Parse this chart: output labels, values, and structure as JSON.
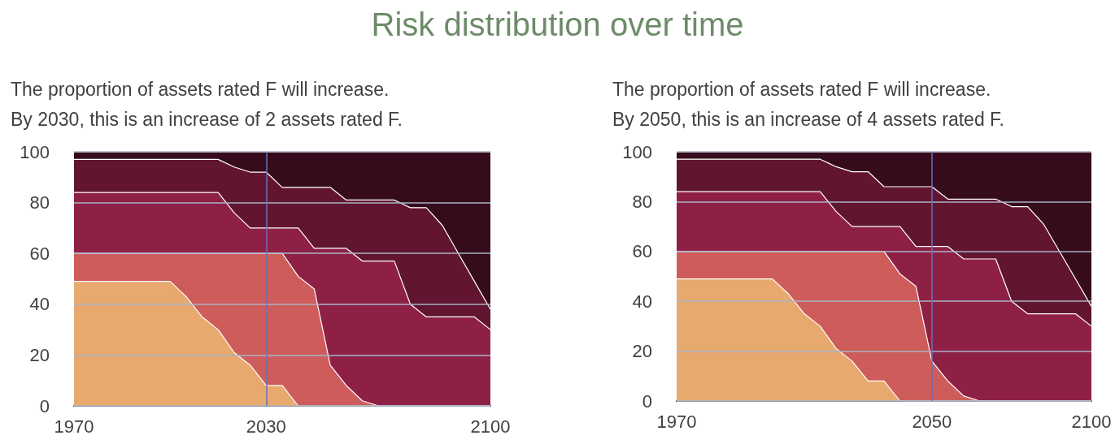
{
  "chart_data": [
    {
      "type": "area",
      "title": "Risk distribution over time",
      "subtitle": "The proportion of assets rated F will increase.\nBy 2030, this is an increase of 2 assets rated F.",
      "stacked": true,
      "grid": "y",
      "x": [
        1970,
        1975,
        1980,
        1985,
        1990,
        1995,
        2000,
        2005,
        2010,
        2015,
        2020,
        2025,
        2030,
        2035,
        2040,
        2045,
        2050,
        2055,
        2060,
        2065,
        2070,
        2075,
        2080,
        2085,
        2090,
        2095,
        2100
      ],
      "xlim": [
        1970,
        2100
      ],
      "xticks": [
        1970,
        2030,
        2100
      ],
      "ylim": [
        0,
        100
      ],
      "yticks": [
        0,
        20,
        40,
        60,
        80,
        100
      ],
      "series": [
        {
          "color": "#e8a96e",
          "values": [
            49,
            49,
            49,
            49,
            49,
            49,
            49,
            43,
            35,
            30,
            21,
            16,
            8,
            8,
            0,
            0,
            0,
            0,
            0,
            0,
            0,
            0,
            0,
            0,
            0,
            0,
            0
          ]
        },
        {
          "color": "#cd5c5a",
          "values": [
            11,
            11,
            11,
            11,
            11,
            11,
            11,
            17,
            25,
            30,
            39,
            44,
            52,
            52,
            51,
            46,
            16,
            8,
            2,
            0,
            0,
            0,
            0,
            0,
            0,
            0,
            0
          ]
        },
        {
          "color": "#8e2046",
          "values": [
            24,
            24,
            24,
            24,
            24,
            24,
            24,
            24,
            24,
            24,
            16,
            10,
            10,
            10,
            19,
            16,
            46,
            54,
            55,
            57,
            57,
            40,
            35,
            35,
            35,
            35,
            30
          ]
        },
        {
          "color": "#611530",
          "values": [
            13,
            13,
            13,
            13,
            13,
            13,
            13,
            13,
            13,
            13,
            18,
            22,
            22,
            16,
            16,
            24,
            24,
            19,
            24,
            24,
            24,
            38,
            43,
            36,
            25,
            14,
            8
          ]
        },
        {
          "color": "#360c1c",
          "values": [
            3,
            3,
            3,
            3,
            3,
            3,
            3,
            3,
            3,
            3,
            6,
            8,
            8,
            14,
            14,
            14,
            14,
            19,
            19,
            19,
            19,
            22,
            22,
            29,
            40,
            51,
            62
          ]
        }
      ],
      "ref_lines": [
        {
          "axis": "x",
          "value": 2030,
          "color": "#6a6fb8"
        }
      ]
    },
    {
      "type": "area",
      "subtitle": "The proportion of assets rated F will increase.\nBy 2050, this is an increase of 4 assets rated F.",
      "stacked": true,
      "grid": "y",
      "x": [
        1970,
        1975,
        1980,
        1985,
        1990,
        1995,
        2000,
        2005,
        2010,
        2015,
        2020,
        2025,
        2030,
        2035,
        2040,
        2045,
        2050,
        2055,
        2060,
        2065,
        2070,
        2075,
        2080,
        2085,
        2090,
        2095,
        2100
      ],
      "xlim": [
        1970,
        2100
      ],
      "xticks": [
        1970,
        2050,
        2100
      ],
      "ylim": [
        0,
        100
      ],
      "yticks": [
        0,
        20,
        40,
        60,
        80,
        100
      ],
      "series": [
        {
          "color": "#e8a96e",
          "values": [
            49,
            49,
            49,
            49,
            49,
            49,
            49,
            43,
            35,
            30,
            21,
            16,
            8,
            8,
            0,
            0,
            0,
            0,
            0,
            0,
            0,
            0,
            0,
            0,
            0,
            0,
            0
          ]
        },
        {
          "color": "#cd5c5a",
          "values": [
            11,
            11,
            11,
            11,
            11,
            11,
            11,
            17,
            25,
            30,
            39,
            44,
            52,
            52,
            51,
            46,
            16,
            8,
            2,
            0,
            0,
            0,
            0,
            0,
            0,
            0,
            0
          ]
        },
        {
          "color": "#8e2046",
          "values": [
            24,
            24,
            24,
            24,
            24,
            24,
            24,
            24,
            24,
            24,
            16,
            10,
            10,
            10,
            19,
            16,
            46,
            54,
            55,
            57,
            57,
            40,
            35,
            35,
            35,
            35,
            30
          ]
        },
        {
          "color": "#611530",
          "values": [
            13,
            13,
            13,
            13,
            13,
            13,
            13,
            13,
            13,
            13,
            18,
            22,
            22,
            16,
            16,
            24,
            24,
            19,
            24,
            24,
            24,
            38,
            43,
            36,
            25,
            14,
            8
          ]
        },
        {
          "color": "#360c1c",
          "values": [
            3,
            3,
            3,
            3,
            3,
            3,
            3,
            3,
            3,
            3,
            6,
            8,
            8,
            14,
            14,
            14,
            14,
            19,
            19,
            19,
            19,
            22,
            22,
            29,
            40,
            51,
            62
          ]
        }
      ],
      "ref_lines": [
        {
          "axis": "x",
          "value": 2050,
          "color": "#6a6fb8"
        }
      ]
    }
  ]
}
